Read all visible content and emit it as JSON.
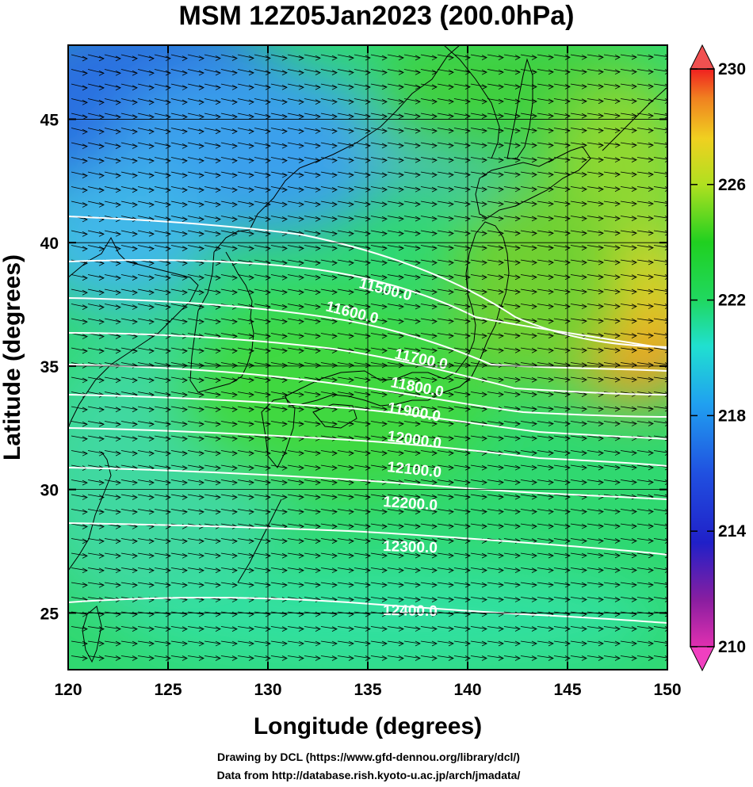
{
  "title": "MSM 12Z05Jan2023 (200.0hPa)",
  "xlabel": "Longitude (degrees)",
  "ylabel": "Latitude  (degrees)",
  "x_ticks": [
    "120",
    "125",
    "130",
    "135",
    "140",
    "145",
    "150"
  ],
  "y_ticks": [
    "25",
    "30",
    "35",
    "40",
    "45"
  ],
  "colorbar": {
    "min": 210,
    "max": 230,
    "ticks": [
      "230",
      "226",
      "222",
      "218",
      "214",
      "210"
    ]
  },
  "contours": [
    {
      "value": 11500,
      "label": "11500.0"
    },
    {
      "value": 11600,
      "label": "11600.0"
    },
    {
      "value": 11700,
      "label": "11700.0"
    },
    {
      "value": 11800,
      "label": "11800.0"
    },
    {
      "value": 11900,
      "label": "11900.0"
    },
    {
      "value": 12000,
      "label": "12000.0"
    },
    {
      "value": 12100,
      "label": "12100.0"
    },
    {
      "value": 12200,
      "label": "12200.0"
    },
    {
      "value": 12300,
      "label": "12300.0"
    },
    {
      "value": 12400,
      "label": "12400.0"
    }
  ],
  "credit_line1": "Drawing by DCL (https://www.gfd-dennou.org/library/dcl/)",
  "credit_line2": "Data from http://database.rish.kyoto-u.ac.jp/arch/jmadata/",
  "colors": {
    "contour": "#ffffff",
    "vector": "#000000",
    "coast": "#000000"
  }
}
